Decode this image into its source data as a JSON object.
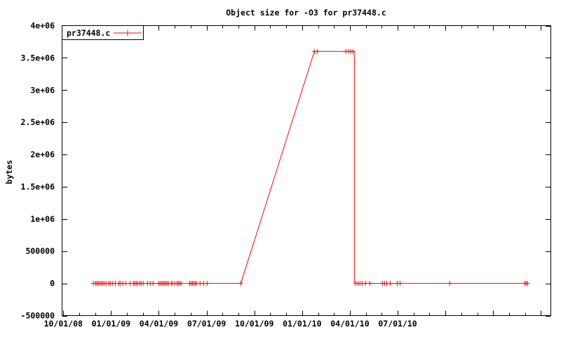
{
  "chart_data": {
    "type": "line",
    "title": "Object size for -O3 for pr37448.c",
    "xlabel": "",
    "ylabel": "bytes",
    "x_unit": "months since 10/01/2008 (axis labeled with mm/dd/yy dates)",
    "xlim": [
      -0.1,
      30.6
    ],
    "ylim": [
      -500000,
      4000000
    ],
    "grid": false,
    "legend_position": "top-left-boxed",
    "background_color": "#ffffff",
    "axis_color": "#000000",
    "x_minor_tick_every_months": 1,
    "x_major_tick_every_months": 3,
    "x_last_tick_month": 30,
    "xticks": [
      {
        "m": 0,
        "label": "10/01/08"
      },
      {
        "m": 3,
        "label": "01/01/09"
      },
      {
        "m": 6,
        "label": "04/01/09"
      },
      {
        "m": 9,
        "label": "07/01/09"
      },
      {
        "m": 12,
        "label": "10/01/09"
      },
      {
        "m": 15,
        "label": "01/01/10"
      },
      {
        "m": 18,
        "label": "04/01/10"
      },
      {
        "m": 21,
        "label": "07/01/10"
      }
    ],
    "yticks": [
      {
        "value": -500000,
        "label": "-500000"
      },
      {
        "value": 0,
        "label": "0"
      },
      {
        "value": 500000,
        "label": "500000"
      },
      {
        "value": 1000000,
        "label": "1e+06"
      },
      {
        "value": 1500000,
        "label": "1.5e+06"
      },
      {
        "value": 2000000,
        "label": "2e+06"
      },
      {
        "value": 2500000,
        "label": "2.5e+06"
      },
      {
        "value": 3000000,
        "label": "3e+06"
      },
      {
        "value": 3500000,
        "label": "3.5e+06"
      },
      {
        "value": 4000000,
        "label": "4e+06"
      }
    ],
    "series": [
      {
        "name": "pr37448.c",
        "color": "#ff0000",
        "marker": "plus",
        "peak_value": 3600000,
        "line_vertices": [
          [
            1.89,
            0
          ],
          [
            11.15,
            0
          ],
          [
            15.77,
            3600000
          ],
          [
            18.28,
            3600000
          ],
          [
            18.28,
            0
          ],
          [
            29.16,
            0
          ]
        ],
        "points": [
          [
            1.89,
            0
          ],
          [
            2.03,
            0
          ],
          [
            2.11,
            0
          ],
          [
            2.2,
            0
          ],
          [
            2.29,
            0
          ],
          [
            2.38,
            0
          ],
          [
            2.47,
            0
          ],
          [
            2.56,
            0
          ],
          [
            2.69,
            0
          ],
          [
            2.86,
            0
          ],
          [
            2.95,
            0
          ],
          [
            3.08,
            0
          ],
          [
            3.26,
            0
          ],
          [
            3.48,
            0
          ],
          [
            3.57,
            0
          ],
          [
            3.74,
            0
          ],
          [
            3.92,
            0
          ],
          [
            4.19,
            0
          ],
          [
            4.41,
            0
          ],
          [
            4.49,
            0
          ],
          [
            4.58,
            0
          ],
          [
            4.67,
            0
          ],
          [
            4.8,
            0
          ],
          [
            4.89,
            0
          ],
          [
            5.02,
            0
          ],
          [
            5.29,
            0
          ],
          [
            5.46,
            0
          ],
          [
            5.64,
            0
          ],
          [
            5.99,
            0
          ],
          [
            6.08,
            0
          ],
          [
            6.17,
            0
          ],
          [
            6.26,
            0
          ],
          [
            6.34,
            0
          ],
          [
            6.43,
            0
          ],
          [
            6.52,
            0
          ],
          [
            6.61,
            0
          ],
          [
            6.78,
            0
          ],
          [
            6.87,
            0
          ],
          [
            7.0,
            0
          ],
          [
            7.14,
            0
          ],
          [
            7.22,
            0
          ],
          [
            7.31,
            0
          ],
          [
            7.4,
            0
          ],
          [
            7.93,
            0
          ],
          [
            8.02,
            0
          ],
          [
            8.11,
            0
          ],
          [
            8.19,
            0
          ],
          [
            8.28,
            0
          ],
          [
            8.37,
            0
          ],
          [
            8.59,
            0
          ],
          [
            8.81,
            0
          ],
          [
            9.03,
            0
          ],
          [
            11.15,
            0
          ],
          [
            15.77,
            3600000
          ],
          [
            15.95,
            3600000
          ],
          [
            17.75,
            3600000
          ],
          [
            17.93,
            3600000
          ],
          [
            18.06,
            3600000
          ],
          [
            18.19,
            3600000
          ],
          [
            18.37,
            0
          ],
          [
            18.5,
            0
          ],
          [
            18.63,
            0
          ],
          [
            18.77,
            0
          ],
          [
            18.99,
            0
          ],
          [
            19.25,
            0
          ],
          [
            20.04,
            0
          ],
          [
            20.18,
            0
          ],
          [
            20.31,
            0
          ],
          [
            20.53,
            0
          ],
          [
            20.97,
            0
          ],
          [
            21.15,
            0
          ],
          [
            24.27,
            0
          ],
          [
            28.99,
            0
          ],
          [
            29.07,
            0
          ],
          [
            29.16,
            0
          ]
        ]
      }
    ]
  }
}
